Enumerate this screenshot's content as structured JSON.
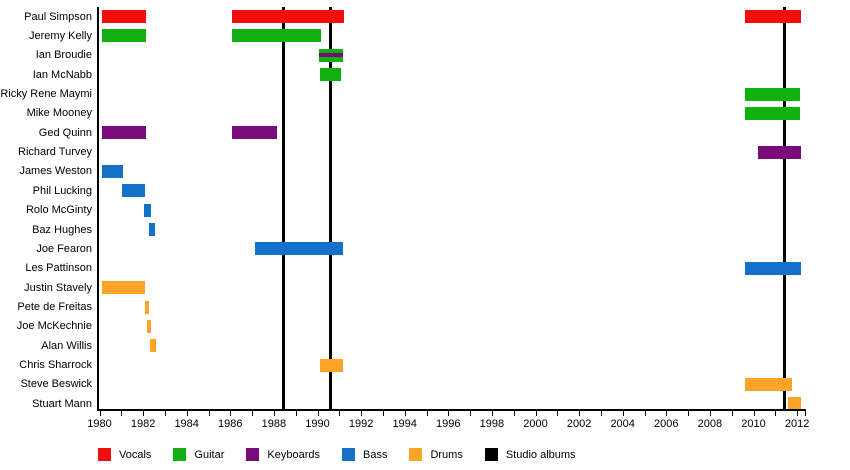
{
  "chart_data": {
    "type": "timeline",
    "title": "",
    "x_axis": {
      "min": 1980,
      "max": 2012.4,
      "label_interval": 2,
      "minor_interval": 1,
      "labeled_years": [
        1980,
        1982,
        1984,
        1986,
        1988,
        1990,
        1992,
        1994,
        1996,
        1998,
        2000,
        2002,
        2004,
        2006,
        2008,
        2010,
        2012
      ]
    },
    "colors": {
      "vocals": "#f10e0c",
      "guitar": "#0fb00f",
      "keyboards": "#7a0b7a",
      "bass": "#1470c8",
      "drums": "#ffa428",
      "albums": "#000000"
    },
    "legend": [
      {
        "id": "vocals",
        "label": "Vocals"
      },
      {
        "id": "guitar",
        "label": "Guitar"
      },
      {
        "id": "keyboards",
        "label": "Keyboards"
      },
      {
        "id": "bass",
        "label": "Bass"
      },
      {
        "id": "drums",
        "label": "Drums"
      },
      {
        "id": "albums",
        "label": "Studio albums"
      }
    ],
    "members": [
      {
        "name": "Paul Simpson",
        "role": "vocals",
        "spans": [
          [
            1980.1,
            1982.15
          ],
          [
            1986.1,
            1991.2
          ],
          [
            2009.6,
            2012.2
          ]
        ]
      },
      {
        "name": "Jeremy Kelly",
        "role": "guitar",
        "spans": [
          [
            1980.1,
            1982.15
          ],
          [
            1986.1,
            1990.15
          ]
        ]
      },
      {
        "name": "Ian Broudie",
        "role": "guitar",
        "stripe_role": "keyboards",
        "spans": [
          [
            1990.05,
            1991.15
          ]
        ]
      },
      {
        "name": "Ian McNabb",
        "role": "guitar",
        "spans": [
          [
            1990.1,
            1991.1
          ]
        ]
      },
      {
        "name": "Ricky Rene Maymi",
        "role": "guitar",
        "spans": [
          [
            2009.6,
            2012.15
          ]
        ]
      },
      {
        "name": "Mike Mooney",
        "role": "guitar",
        "spans": [
          [
            2009.6,
            2012.15
          ]
        ]
      },
      {
        "name": "Ged Quinn",
        "role": "keyboards",
        "spans": [
          [
            1980.1,
            1982.15
          ],
          [
            1986.1,
            1988.15
          ]
        ]
      },
      {
        "name": "Richard Turvey",
        "role": "keyboards",
        "spans": [
          [
            2010.2,
            2012.2
          ]
        ]
      },
      {
        "name": "James Weston",
        "role": "bass",
        "spans": [
          [
            1980.1,
            1981.1
          ]
        ]
      },
      {
        "name": "Phil Lucking",
        "role": "bass",
        "spans": [
          [
            1981.05,
            1982.1
          ]
        ]
      },
      {
        "name": "Rolo McGinty",
        "role": "bass",
        "spans": [
          [
            1982.05,
            1982.35
          ]
        ]
      },
      {
        "name": "Baz Hughes",
        "role": "bass",
        "spans": [
          [
            1982.25,
            1982.55
          ]
        ]
      },
      {
        "name": "Joe Fearon",
        "role": "bass",
        "spans": [
          [
            1987.15,
            1991.15
          ]
        ]
      },
      {
        "name": "Les Pattinson",
        "role": "bass",
        "spans": [
          [
            2009.6,
            2012.2
          ]
        ]
      },
      {
        "name": "Justin Stavely",
        "role": "drums",
        "spans": [
          [
            1980.1,
            1982.1
          ]
        ]
      },
      {
        "name": "Pete de Freitas",
        "role": "drums",
        "spans": [
          [
            1982.08,
            1982.28
          ]
        ]
      },
      {
        "name": "Joe McKechnie",
        "role": "drums",
        "spans": [
          [
            1982.2,
            1982.38
          ]
        ]
      },
      {
        "name": "Alan Willis",
        "role": "drums",
        "spans": [
          [
            1982.3,
            1982.6
          ]
        ]
      },
      {
        "name": "Chris Sharrock",
        "role": "drums",
        "spans": [
          [
            1990.1,
            1991.15
          ]
        ]
      },
      {
        "name": "Steve Beswick",
        "role": "drums",
        "spans": [
          [
            2009.6,
            2011.75
          ]
        ]
      },
      {
        "name": "Stuart Mann",
        "role": "drums",
        "spans": [
          [
            2011.6,
            2012.2
          ]
        ]
      }
    ],
    "albums": {
      "label": "Studio albums",
      "years": [
        1988.43,
        1990.59,
        2011.41
      ]
    }
  }
}
